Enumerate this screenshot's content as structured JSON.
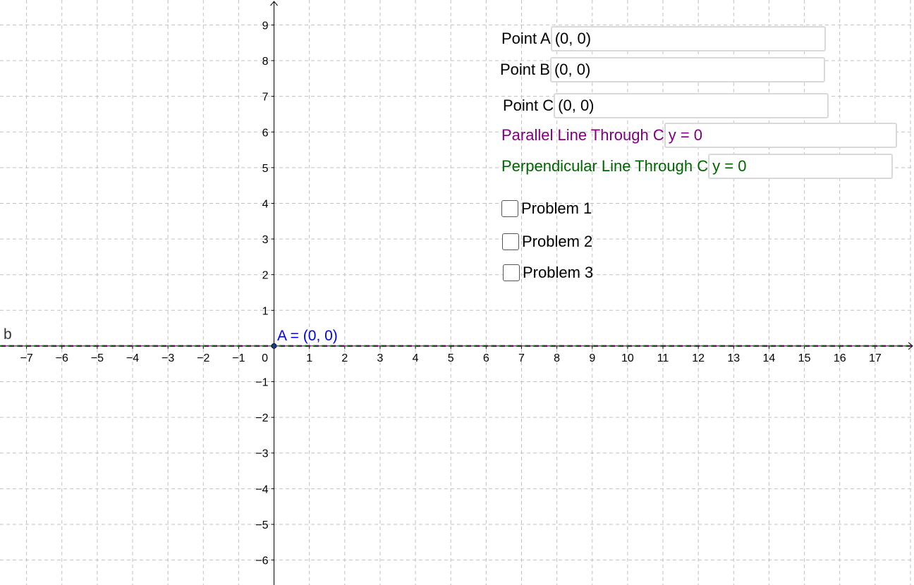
{
  "axes": {
    "x_ticks": [
      "−7",
      "−6",
      "−5",
      "−4",
      "−3",
      "−2",
      "−1",
      "0",
      "1",
      "2",
      "3",
      "4",
      "5",
      "6",
      "7",
      "8",
      "9",
      "10",
      "11",
      "12",
      "13",
      "14",
      "15",
      "16",
      "17"
    ],
    "y_ticks": [
      "9",
      "8",
      "7",
      "6",
      "5",
      "4",
      "3",
      "2",
      "1",
      "−1",
      "−2",
      "−3",
      "−4",
      "−5",
      "−6"
    ],
    "x_range": [
      -7.75,
      18.1
    ],
    "y_range": [
      -6.7,
      9.7
    ],
    "grid": true
  },
  "objects": {
    "line_b_label": "b",
    "point_label": "A = (0, 0)",
    "line_colors": {
      "b": "#333333",
      "parallel": "#7f007f",
      "perpendicular": "#00b000",
      "point": "#1e3a8a",
      "point_label": "#0000ff"
    }
  },
  "inputs": {
    "point_a": {
      "label": "Point A",
      "value": "(0, 0)"
    },
    "point_b": {
      "label": "Point B",
      "value": "(0, 0)"
    },
    "point_c": {
      "label": "Point C",
      "value": "(0, 0)"
    },
    "parallel": {
      "label": "Parallel Line Through C",
      "value": "y = 0",
      "color": "#800080"
    },
    "perpendicular": {
      "label": "Perpendicular Line Through C",
      "value": "y = 0",
      "color": "#006400"
    }
  },
  "checkboxes": [
    {
      "label": "Problem 1",
      "checked": false
    },
    {
      "label": "Problem 2",
      "checked": false
    },
    {
      "label": "Problem 3",
      "checked": false
    }
  ]
}
